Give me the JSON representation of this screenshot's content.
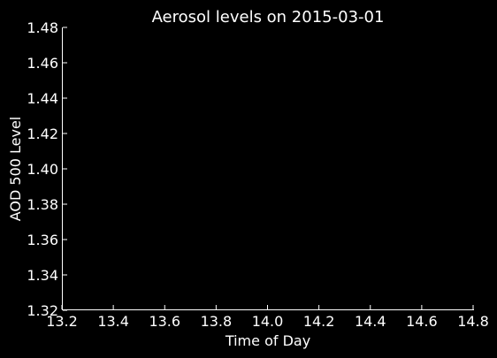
{
  "colors": {
    "background": "#000000",
    "axis": "#ffffff",
    "text": "#ffffff"
  },
  "chart_data": {
    "type": "line",
    "title": "Aerosol levels on 2015-03-01",
    "xlabel": "Time of Day",
    "ylabel": "AOD 500 Level",
    "xlim": [
      13.2,
      14.8
    ],
    "ylim": [
      1.32,
      1.48
    ],
    "xticks": [
      "13.2",
      "13.4",
      "13.6",
      "13.8",
      "14.0",
      "14.2",
      "14.4",
      "14.6",
      "14.8"
    ],
    "yticks": [
      "1.32",
      "1.34",
      "1.36",
      "1.38",
      "1.40",
      "1.42",
      "1.44",
      "1.46",
      "1.48"
    ],
    "grid": false,
    "series": [
      {
        "x": [],
        "y": []
      }
    ]
  }
}
